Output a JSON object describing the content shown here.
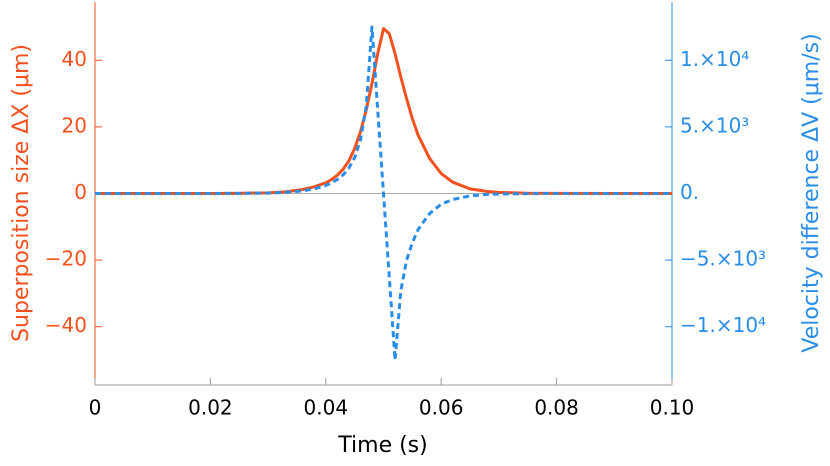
{
  "chart_data": {
    "type": "line",
    "x_label": "Time (s)",
    "y_label": "Superposition size ΔX (μm)",
    "y2_label": "Velocity difference ΔV (μm/s)",
    "x": [
      0,
      0.01,
      0.02,
      0.025,
      0.03,
      0.033,
      0.036,
      0.038,
      0.04,
      0.041,
      0.042,
      0.043,
      0.044,
      0.045,
      0.046,
      0.047,
      0.048,
      0.049,
      0.05,
      0.051,
      0.052,
      0.053,
      0.054,
      0.055,
      0.056,
      0.058,
      0.06,
      0.062,
      0.065,
      0.068,
      0.07,
      0.075,
      0.08,
      0.09,
      0.1
    ],
    "series": [
      {
        "color": "#f4511e",
        "axis": "y",
        "dash": false,
        "values": [
          0,
          0,
          0,
          0.05,
          0.2,
          0.5,
          1.2,
          2,
          3.2,
          4.2,
          5.5,
          7.3,
          9.8,
          13.5,
          18.5,
          25,
          33,
          42,
          49.5,
          48,
          42,
          35,
          28.5,
          22.5,
          17.5,
          10.5,
          6,
          3.4,
          1.4,
          0.6,
          0.35,
          0.08,
          0.02,
          0,
          0
        ]
      },
      {
        "color": "#2a8ee8",
        "axis": "y2",
        "dash": true,
        "values": [
          0,
          0,
          0,
          10,
          30,
          80,
          200,
          350,
          600,
          800,
          1050,
          1400,
          1900,
          2700,
          4000,
          6500,
          12500,
          6250,
          0,
          -6250,
          -12500,
          -7300,
          -5000,
          -3700,
          -2700,
          -1500,
          -800,
          -450,
          -180,
          -70,
          -40,
          -10,
          0,
          0,
          0
        ]
      }
    ],
    "xlim": [
      0,
      0.1
    ],
    "xticks": [
      0,
      0.02,
      0.04,
      0.06,
      0.08,
      {
        "value": 0.1,
        "label": "0.10"
      }
    ],
    "ylim": [
      -57.5,
      57.5
    ],
    "yticks": [
      {
        "value": -40,
        "label": "−40"
      },
      {
        "value": -20,
        "label": "−20"
      },
      0,
      20,
      40
    ],
    "y2lim": [
      -14375,
      14375
    ],
    "y2ticks": [
      {
        "value": -10000,
        "label": "−1.×10⁴"
      },
      {
        "value": -5000,
        "label": "−5.×10³"
      },
      {
        "value": 0,
        "label": "0."
      },
      {
        "value": 5000,
        "label": "5.×10³"
      },
      {
        "value": 10000,
        "label": "1.×10⁴"
      }
    ]
  }
}
